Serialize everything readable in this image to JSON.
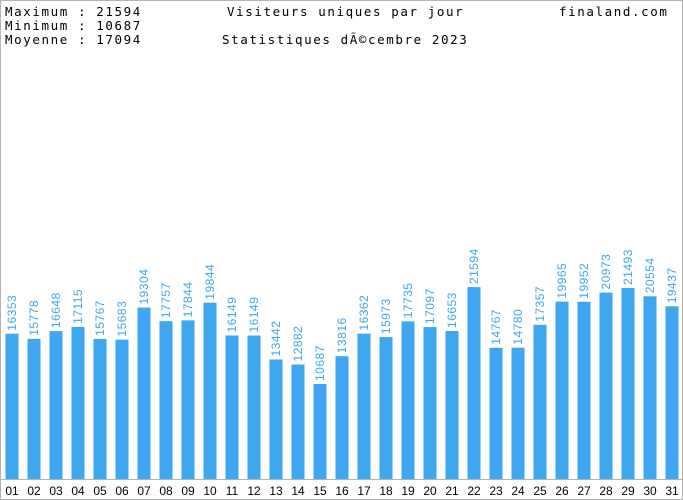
{
  "header": {
    "max_label": "Maximum : 21594",
    "min_label": "Minimum : 10687",
    "avg_label": "Moyenne : 17094",
    "site": "finaland.com"
  },
  "chart_data": {
    "type": "bar",
    "title": "Visiteurs uniques par jour",
    "subtitle": "Statistiques dÃ©cembre 2023",
    "xlabel": "",
    "ylabel": "",
    "categories": [
      "01",
      "02",
      "03",
      "04",
      "05",
      "06",
      "07",
      "08",
      "09",
      "10",
      "11",
      "12",
      "13",
      "14",
      "15",
      "16",
      "17",
      "18",
      "19",
      "20",
      "21",
      "22",
      "23",
      "24",
      "25",
      "26",
      "27",
      "28",
      "29",
      "30",
      "31"
    ],
    "values": [
      16353,
      15778,
      16648,
      17115,
      15767,
      15683,
      19304,
      17757,
      17844,
      19844,
      16149,
      16149,
      13442,
      12882,
      10687,
      13816,
      16362,
      15973,
      17735,
      17097,
      16653,
      21594,
      14767,
      14780,
      17357,
      19965,
      19952,
      20973,
      21493,
      20554,
      19437
    ],
    "ylim": [
      0,
      44000
    ],
    "grid": false,
    "legend": "none",
    "bar_color": "#3fa6f0",
    "value_label_color": "#3fa6f0",
    "frame_color": "#b4b4b4",
    "background": "#ffffff"
  }
}
